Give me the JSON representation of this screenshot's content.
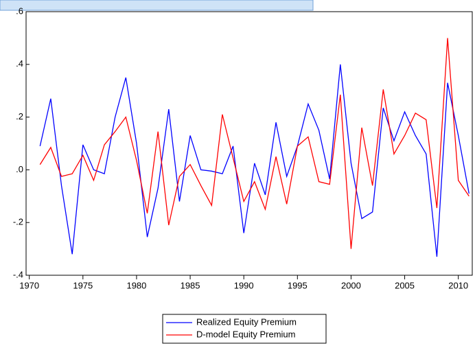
{
  "chart_data": {
    "type": "line",
    "x": [
      1971,
      1972,
      1973,
      1974,
      1975,
      1976,
      1977,
      1978,
      1979,
      1980,
      1981,
      1982,
      1983,
      1984,
      1985,
      1986,
      1987,
      1988,
      1989,
      1990,
      1991,
      1992,
      1993,
      1994,
      1995,
      1996,
      1997,
      1998,
      1999,
      2000,
      2001,
      2002,
      2003,
      2004,
      2005,
      2006,
      2007,
      2008,
      2009,
      2010,
      2011
    ],
    "series": [
      {
        "name": "Realized Equity Premium",
        "color": "#0000ff",
        "values": [
          0.09,
          0.27,
          -0.06,
          -0.32,
          0.095,
          0.0,
          -0.015,
          0.2,
          0.35,
          0.1,
          -0.255,
          -0.07,
          0.23,
          -0.12,
          0.13,
          0.0,
          -0.005,
          -0.015,
          0.09,
          -0.24,
          0.025,
          -0.095,
          0.18,
          -0.025,
          0.09,
          0.25,
          0.15,
          -0.035,
          0.4,
          0.025,
          -0.185,
          -0.16,
          0.235,
          0.11,
          0.22,
          0.13,
          0.06,
          -0.33,
          0.33,
          0.13,
          -0.09
        ]
      },
      {
        "name": "D-model Equity Premium",
        "color": "#ff0000",
        "values": [
          0.02,
          0.085,
          -0.025,
          -0.015,
          0.055,
          -0.04,
          0.095,
          0.145,
          0.2,
          0.035,
          -0.165,
          0.145,
          -0.21,
          -0.025,
          0.02,
          -0.06,
          -0.135,
          0.21,
          0.045,
          -0.12,
          -0.045,
          -0.15,
          0.05,
          -0.13,
          0.09,
          0.125,
          -0.045,
          -0.055,
          0.285,
          -0.3,
          0.16,
          -0.06,
          0.305,
          0.06,
          0.13,
          0.215,
          0.19,
          -0.145,
          0.5,
          -0.04,
          -0.1
        ]
      }
    ],
    "xlim": [
      1969.7,
      2011.3
    ],
    "xticks": [
      1970,
      1975,
      1980,
      1985,
      1990,
      1995,
      2000,
      2005,
      2010
    ],
    "ylim": [
      -0.4,
      0.6
    ],
    "yticks": [
      {
        "value": -0.4,
        "label": "-.4"
      },
      {
        "value": -0.2,
        "label": "-.2"
      },
      {
        "value": 0,
        "label": ".0"
      },
      {
        "value": 0.2,
        "label": ".2"
      },
      {
        "value": 0.4,
        "label": ".4"
      },
      {
        "value": 0.6,
        "label": ".6"
      }
    ],
    "legend": "bottom"
  }
}
